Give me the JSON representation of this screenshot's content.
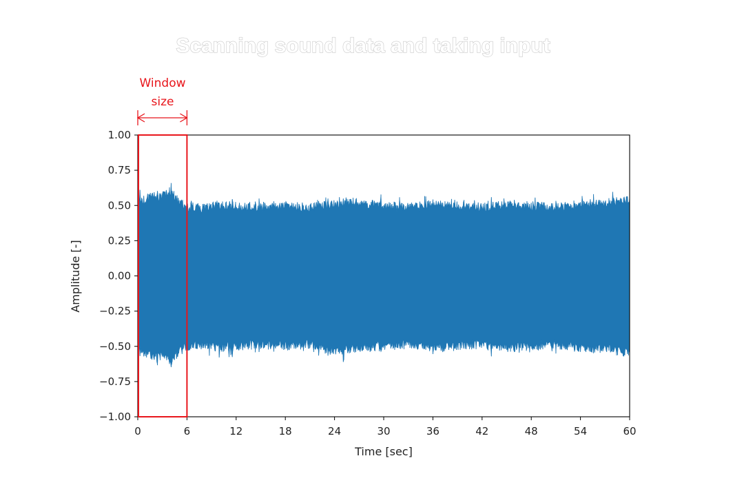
{
  "chart_data": {
    "type": "line",
    "title": "Scanning sound data and taking input",
    "xlabel": "Time [sec]",
    "ylabel": "Amplitude [-]",
    "xlim": [
      0,
      60
    ],
    "ylim": [
      -1.0,
      1.0
    ],
    "xticks": [
      0,
      6,
      12,
      18,
      24,
      30,
      36,
      42,
      48,
      54,
      60
    ],
    "xtick_labels": [
      "0",
      "6",
      "12",
      "18",
      "24",
      "30",
      "36",
      "42",
      "48",
      "54",
      "60"
    ],
    "yticks": [
      1.0,
      0.75,
      0.5,
      0.25,
      0.0,
      -0.25,
      -0.5,
      -0.75,
      -1.0
    ],
    "ytick_labels": [
      "1.00",
      "0.75",
      "0.50",
      "0.25",
      "0.00",
      "−0.25",
      "−0.50",
      "−0.75",
      "−1.00"
    ],
    "grid": false,
    "series": [
      {
        "color": "#1f77b4",
        "envelope": {
          "x": [
            0,
            1,
            2,
            3,
            4,
            5,
            6,
            8,
            10,
            12,
            15,
            18,
            21,
            24,
            27,
            30,
            33,
            36,
            39,
            42,
            45,
            48,
            51,
            54,
            57,
            60
          ],
          "upper": [
            0.56,
            0.58,
            0.6,
            0.6,
            0.64,
            0.56,
            0.52,
            0.52,
            0.54,
            0.53,
            0.52,
            0.53,
            0.52,
            0.54,
            0.56,
            0.53,
            0.52,
            0.54,
            0.53,
            0.52,
            0.54,
            0.53,
            0.52,
            0.54,
            0.55,
            0.58
          ],
          "lower": [
            -0.56,
            -0.58,
            -0.6,
            -0.6,
            -0.64,
            -0.57,
            -0.53,
            -0.52,
            -0.54,
            -0.53,
            -0.52,
            -0.53,
            -0.52,
            -0.57,
            -0.55,
            -0.53,
            -0.52,
            -0.54,
            -0.53,
            -0.52,
            -0.54,
            -0.53,
            -0.52,
            -0.54,
            -0.55,
            -0.58
          ]
        }
      }
    ],
    "annotation": {
      "text_line1": "Window",
      "text_line2": "size",
      "color": "#e8151b",
      "x_start": 0,
      "x_end": 6,
      "y_bottom": -1.0,
      "y_top": 1.0
    }
  }
}
